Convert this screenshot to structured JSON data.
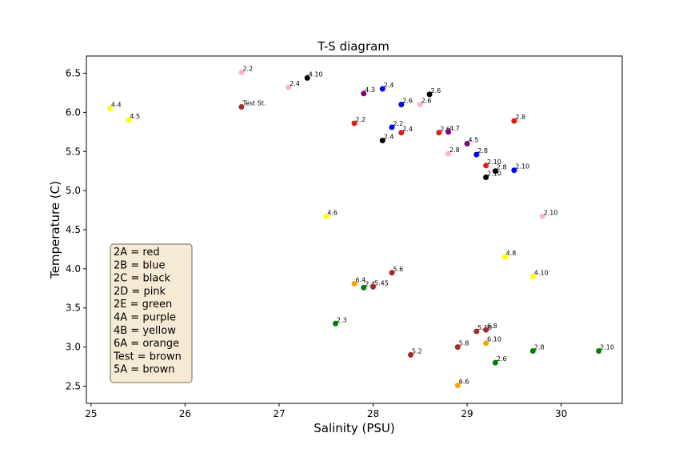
{
  "chart_data": {
    "type": "scatter",
    "title": "T-S diagram",
    "xlabel": "Salinity (PSU)",
    "ylabel": "Temperature (C)",
    "xlim": [
      24.95,
      30.65
    ],
    "ylim": [
      2.28,
      6.72
    ],
    "xticks": [
      25,
      26,
      27,
      28,
      29,
      30
    ],
    "yticks": [
      2.5,
      3.0,
      3.5,
      4.0,
      4.5,
      5.0,
      5.5,
      6.0,
      6.5
    ],
    "xtick_labels": [
      "25",
      "26",
      "27",
      "28",
      "29",
      "30"
    ],
    "ytick_labels": [
      "2.5",
      "3.0",
      "3.5",
      "4.0",
      "4.5",
      "5.0",
      "5.5",
      "6.0",
      "6.5"
    ],
    "grid": false,
    "legend_placement": "lower-left",
    "legend": [
      "2A = red",
      "2B = blue",
      "2C = black",
      "2D = pink",
      "2E = green",
      "4A = purple",
      "4B = yellow",
      "6A = orange",
      "Test = brown",
      "5A = brown"
    ],
    "colors": {
      "red": "#e31a1c",
      "blue": "#0000ff",
      "black": "#000000",
      "pink": "#ffb6c1",
      "green": "#008000",
      "purple": "#800080",
      "yellow": "#ffff00",
      "orange": "#ffa500",
      "brown": "#a52a2a"
    },
    "points": [
      {
        "x": 26.6,
        "y": 6.51,
        "label": "2.2",
        "color": "pink"
      },
      {
        "x": 27.1,
        "y": 6.32,
        "label": "2.4",
        "color": "pink"
      },
      {
        "x": 28.5,
        "y": 6.1,
        "label": "2.6",
        "color": "pink"
      },
      {
        "x": 28.8,
        "y": 5.47,
        "label": "2.8",
        "color": "pink"
      },
      {
        "x": 29.8,
        "y": 4.67,
        "label": "2.10",
        "color": "pink"
      },
      {
        "x": 27.3,
        "y": 6.44,
        "label": "4.10",
        "color": "black"
      },
      {
        "x": 28.6,
        "y": 6.23,
        "label": "2.6",
        "color": "black"
      },
      {
        "x": 28.1,
        "y": 5.64,
        "label": "2.4",
        "color": "black"
      },
      {
        "x": 29.3,
        "y": 5.25,
        "label": "2.8",
        "color": "black"
      },
      {
        "x": 29.2,
        "y": 5.17,
        "label": "2.10",
        "color": "black"
      },
      {
        "x": 28.1,
        "y": 6.3,
        "label": "2.4",
        "color": "blue"
      },
      {
        "x": 28.3,
        "y": 6.1,
        "label": "2.6",
        "color": "blue"
      },
      {
        "x": 28.2,
        "y": 5.81,
        "label": "2.2",
        "color": "blue"
      },
      {
        "x": 29.1,
        "y": 5.46,
        "label": "2.8",
        "color": "blue"
      },
      {
        "x": 29.5,
        "y": 5.26,
        "label": "2.10",
        "color": "blue"
      },
      {
        "x": 27.8,
        "y": 5.86,
        "label": "2.2",
        "color": "red"
      },
      {
        "x": 28.3,
        "y": 5.74,
        "label": "2.4",
        "color": "red"
      },
      {
        "x": 28.7,
        "y": 5.74,
        "label": "2.6",
        "color": "red"
      },
      {
        "x": 29.5,
        "y": 5.89,
        "label": "2.8",
        "color": "red"
      },
      {
        "x": 29.2,
        "y": 5.32,
        "label": "2.10",
        "color": "red"
      },
      {
        "x": 27.9,
        "y": 6.24,
        "label": "4.3",
        "color": "purple"
      },
      {
        "x": 28.8,
        "y": 5.75,
        "label": "4.7",
        "color": "purple"
      },
      {
        "x": 29.0,
        "y": 5.6,
        "label": "4.5",
        "color": "purple"
      },
      {
        "x": 26.6,
        "y": 6.07,
        "label": "Test St.",
        "color": "brown"
      },
      {
        "x": 25.2,
        "y": 6.05,
        "label": "4.4",
        "color": "yellow"
      },
      {
        "x": 25.4,
        "y": 5.9,
        "label": "4.5",
        "color": "yellow"
      },
      {
        "x": 27.5,
        "y": 4.67,
        "label": "4.6",
        "color": "yellow"
      },
      {
        "x": 29.4,
        "y": 4.15,
        "label": "4.8",
        "color": "yellow"
      },
      {
        "x": 29.7,
        "y": 3.9,
        "label": "4.10",
        "color": "yellow"
      },
      {
        "x": 27.8,
        "y": 3.81,
        "label": "6.4",
        "color": "orange"
      },
      {
        "x": 29.2,
        "y": 3.05,
        "label": "6.10",
        "color": "orange"
      },
      {
        "x": 28.9,
        "y": 2.51,
        "label": "6.6",
        "color": "orange"
      },
      {
        "x": 27.9,
        "y": 3.76,
        "label": "2.4",
        "color": "green"
      },
      {
        "x": 27.6,
        "y": 3.3,
        "label": "2.3",
        "color": "green"
      },
      {
        "x": 29.7,
        "y": 2.95,
        "label": "2.8",
        "color": "green"
      },
      {
        "x": 29.3,
        "y": 2.8,
        "label": "2.6",
        "color": "green"
      },
      {
        "x": 30.4,
        "y": 2.95,
        "label": "2.10",
        "color": "green"
      },
      {
        "x": 28.2,
        "y": 3.95,
        "label": "5.6",
        "color": "brown"
      },
      {
        "x": 28.0,
        "y": 3.77,
        "label": "5.45",
        "color": "brown"
      },
      {
        "x": 29.1,
        "y": 3.2,
        "label": "5.10",
        "color": "brown"
      },
      {
        "x": 29.2,
        "y": 3.22,
        "label": "6.8",
        "color": "brown"
      },
      {
        "x": 28.9,
        "y": 3.0,
        "label": "5.8",
        "color": "brown"
      },
      {
        "x": 28.4,
        "y": 2.9,
        "label": "5.2",
        "color": "brown"
      }
    ]
  }
}
